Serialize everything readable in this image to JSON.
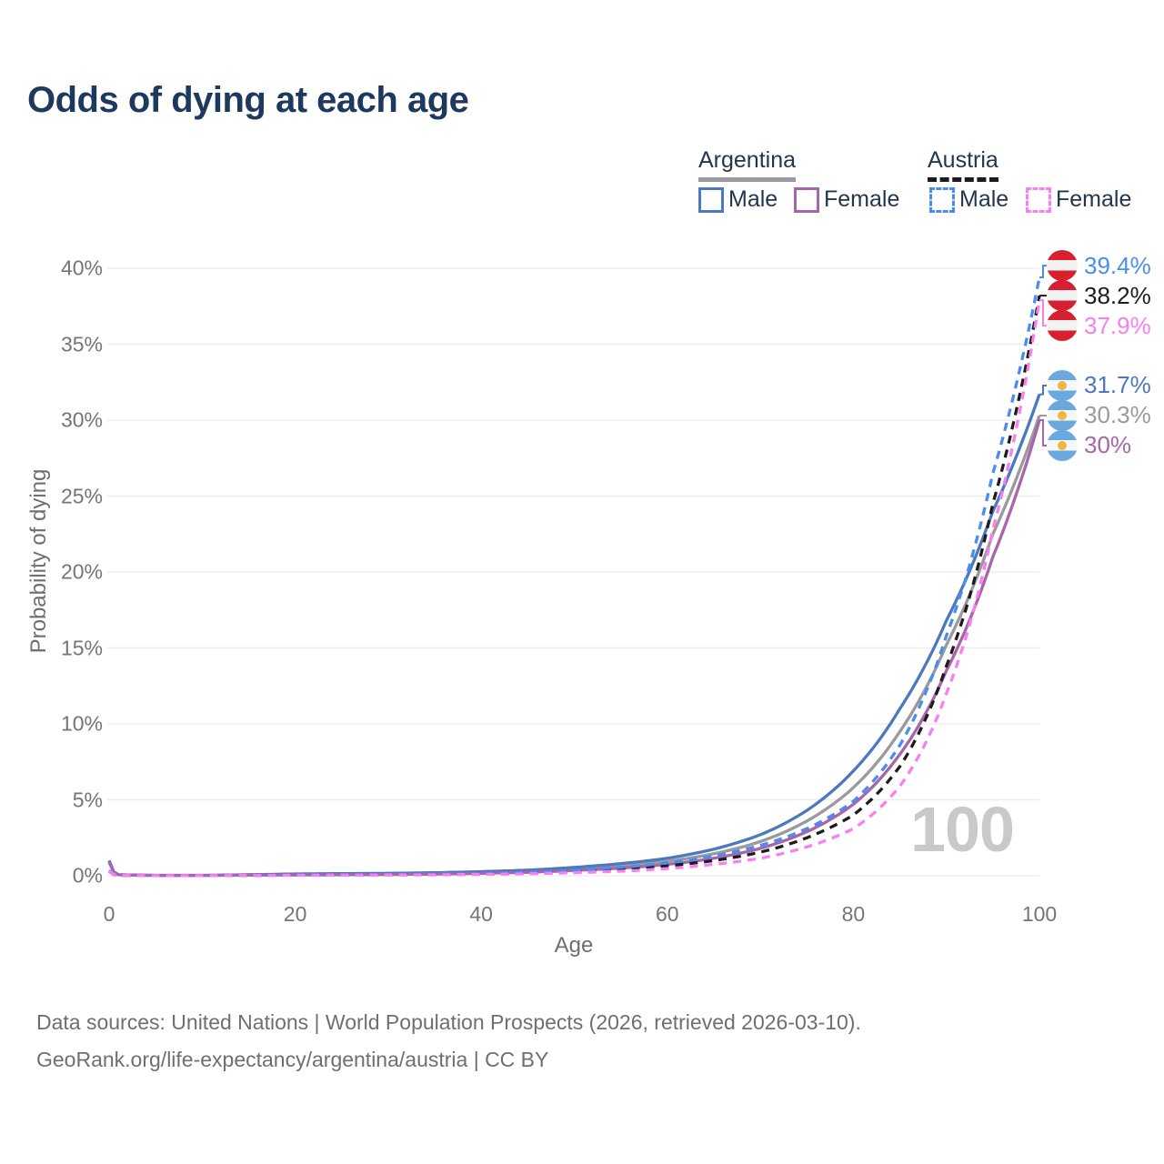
{
  "header": {
    "title": "Odds of dying at each age"
  },
  "legend": {
    "groups": [
      {
        "name": "Argentina",
        "line_style": "solid",
        "line_color": "#9a9a9e",
        "items": [
          {
            "label": "Male",
            "color": "#4b79be",
            "dash": false
          },
          {
            "label": "Female",
            "color": "#a765ab",
            "dash": false
          }
        ]
      },
      {
        "name": "Austria",
        "line_style": "dashed",
        "line_color": "#1c1c1c",
        "items": [
          {
            "label": "Male",
            "color": "#4a8df0",
            "dash": true
          },
          {
            "label": "Female",
            "color": "#f97ef0",
            "dash": true
          }
        ]
      }
    ]
  },
  "chart_data": {
    "type": "line",
    "title": "Odds of dying at each age",
    "xlabel": "Age",
    "ylabel": "Probability of dying",
    "xlim": [
      0,
      100
    ],
    "ylim": [
      0,
      40
    ],
    "y_unit": "%",
    "grid": "horizontal-only",
    "x_ticks": [
      {
        "v": 0,
        "label": "0"
      },
      {
        "v": 20,
        "label": "20"
      },
      {
        "v": 40,
        "label": "40"
      },
      {
        "v": 60,
        "label": "60"
      },
      {
        "v": 80,
        "label": "80"
      },
      {
        "v": 100,
        "label": "100"
      }
    ],
    "y_ticks": [
      {
        "v": 0,
        "label": "0%"
      },
      {
        "v": 5,
        "label": "5%"
      },
      {
        "v": 10,
        "label": "10%"
      },
      {
        "v": 15,
        "label": "15%"
      },
      {
        "v": 20,
        "label": "20%"
      },
      {
        "v": 25,
        "label": "25%"
      },
      {
        "v": 30,
        "label": "30%"
      },
      {
        "v": 35,
        "label": "35%"
      },
      {
        "v": 40,
        "label": "40%"
      }
    ],
    "ages": [
      0,
      1,
      5,
      10,
      15,
      20,
      25,
      30,
      35,
      40,
      45,
      50,
      55,
      60,
      65,
      70,
      75,
      80,
      85,
      90,
      95,
      100
    ],
    "series": [
      {
        "id": "argentina-total",
        "name": "Argentina",
        "color": "#9a9a9e",
        "dash": false,
        "values": [
          0.95,
          0.065,
          0.025,
          0.025,
          0.055,
          0.085,
          0.1,
          0.12,
          0.15,
          0.21,
          0.3,
          0.45,
          0.65,
          0.95,
          1.45,
          2.25,
          3.6,
          5.8,
          9.5,
          15.2,
          22.5,
          30.3
        ]
      },
      {
        "id": "argentina-male",
        "name": "Argentina Male",
        "color": "#4b79be",
        "dash": false,
        "values": [
          1.0,
          0.07,
          0.03,
          0.03,
          0.07,
          0.12,
          0.14,
          0.16,
          0.2,
          0.27,
          0.37,
          0.55,
          0.8,
          1.15,
          1.75,
          2.7,
          4.3,
          6.9,
          11.0,
          16.8,
          24.0,
          31.7
        ]
      },
      {
        "id": "argentina-female",
        "name": "Argentina Female",
        "color": "#a765ab",
        "dash": false,
        "values": [
          0.9,
          0.06,
          0.02,
          0.02,
          0.04,
          0.05,
          0.06,
          0.08,
          0.11,
          0.16,
          0.23,
          0.35,
          0.5,
          0.75,
          1.15,
          1.8,
          2.9,
          4.7,
          8.0,
          13.5,
          21.0,
          30.0
        ]
      },
      {
        "id": "austria-total",
        "name": "Austria",
        "color": "#1c1c1c",
        "dash": true,
        "values": [
          0.3,
          0.02,
          0.01,
          0.01,
          0.02,
          0.05,
          0.06,
          0.07,
          0.09,
          0.12,
          0.17,
          0.27,
          0.42,
          0.65,
          1.0,
          1.55,
          2.5,
          4.0,
          7.2,
          13.8,
          24.5,
          38.2
        ]
      },
      {
        "id": "austria-male",
        "name": "Austria Male",
        "color": "#4a8df0",
        "dash": true,
        "values": [
          0.35,
          0.02,
          0.01,
          0.01,
          0.03,
          0.07,
          0.08,
          0.09,
          0.11,
          0.15,
          0.22,
          0.35,
          0.55,
          0.85,
          1.3,
          2.0,
          3.1,
          4.9,
          8.6,
          15.8,
          26.5,
          39.4
        ]
      },
      {
        "id": "austria-female",
        "name": "Austria Female",
        "color": "#f97ef0",
        "dash": true,
        "values": [
          0.3,
          0.02,
          0.01,
          0.01,
          0.02,
          0.03,
          0.035,
          0.045,
          0.06,
          0.09,
          0.13,
          0.2,
          0.3,
          0.47,
          0.75,
          1.15,
          1.9,
          3.1,
          5.9,
          12.0,
          22.8,
          37.9
        ]
      }
    ],
    "end_labels": [
      {
        "series": "austria-male",
        "value_text": "39.4%",
        "value": 39.4,
        "color": "#4a8df0",
        "flag": "austria"
      },
      {
        "series": "austria-total",
        "value_text": "38.2%",
        "value": 38.2,
        "color": "#1c1c1c",
        "flag": "austria"
      },
      {
        "series": "austria-female",
        "value_text": "37.9%",
        "value": 37.9,
        "color": "#f97ef0",
        "flag": "austria"
      },
      {
        "series": "argentina-male",
        "value_text": "31.7%",
        "value": 31.7,
        "color": "#4b79be",
        "flag": "argentina"
      },
      {
        "series": "argentina-total",
        "value_text": "30.3%",
        "value": 30.3,
        "color": "#9a9a9a",
        "flag": "argentina"
      },
      {
        "series": "argentina-female",
        "value_text": "30%",
        "value": 30.0,
        "color": "#a765ab",
        "flag": "argentina"
      }
    ],
    "watermark": "100"
  },
  "footer": {
    "line1": "Data sources: United Nations | World Population Prospects (2026, retrieved 2026-03-10).",
    "line2": "GeoRank.org/life-expectancy/argentina/austria | CC BY"
  }
}
